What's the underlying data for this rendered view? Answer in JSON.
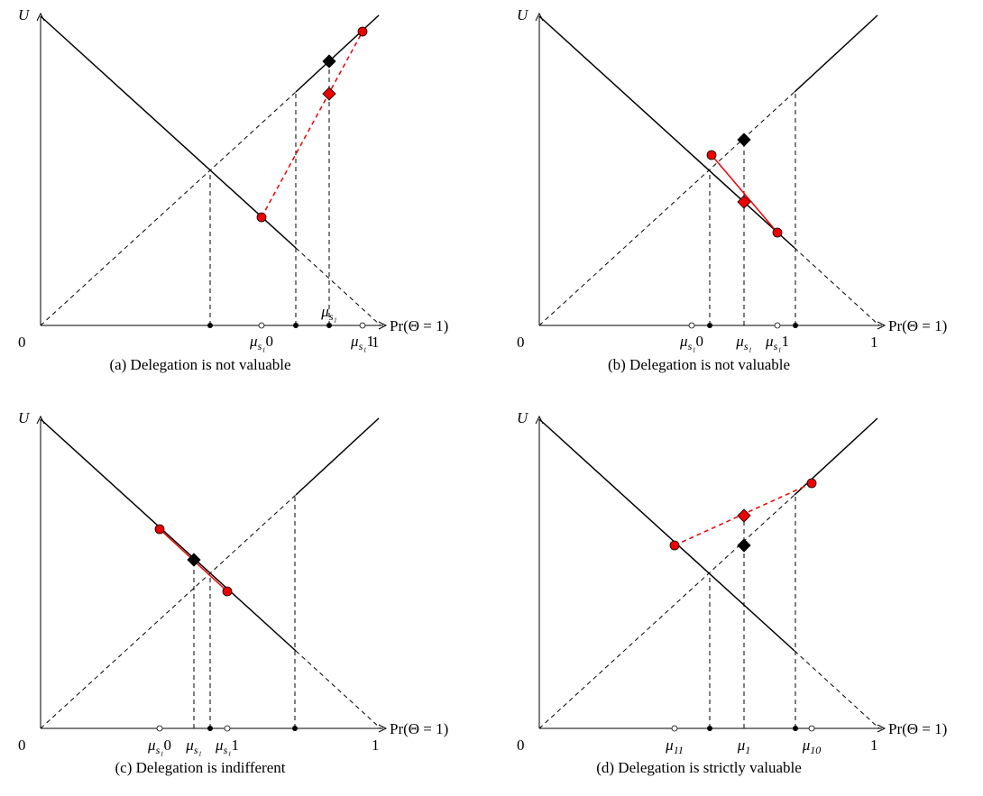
{
  "panels": [
    {
      "caption": "(a) Delegation is not valuable",
      "y_label": "U",
      "x_label": "Pr(Θ = 1)",
      "origin": "0",
      "one": "1",
      "mu_labels": [
        {
          "sym": "μ",
          "sub": "s₁",
          "tail": "0"
        },
        {
          "sym": "μ",
          "sub": "s₁"
        },
        {
          "sym": "μ",
          "sub": "s₁",
          "tail": "1"
        }
      ]
    },
    {
      "caption": "(b) Delegation is not valuable",
      "y_label": "U",
      "x_label": "Pr(Θ = 1)",
      "origin": "0",
      "one": "1",
      "mu_labels": [
        {
          "sym": "μ",
          "sub": "s₁",
          "tail": "0"
        },
        {
          "sym": "μ",
          "sub": "s₁"
        },
        {
          "sym": "μ",
          "sub": "s₁",
          "tail": "1"
        }
      ]
    },
    {
      "caption": "(c) Delegation is indifferent",
      "y_label": "U",
      "x_label": "Pr(Θ = 1)",
      "origin": "0",
      "one": "1",
      "mu_labels": [
        {
          "sym": "μ",
          "sub": "s₁",
          "tail": "0"
        },
        {
          "sym": "μ",
          "sub": "s₁"
        },
        {
          "sym": "μ",
          "sub": "s₁",
          "tail": "1"
        }
      ]
    },
    {
      "caption": "(d) Delegation is strictly valuable",
      "y_label": "U",
      "x_label": "Pr(Θ = 1)",
      "origin": "0",
      "one": "1",
      "mu_labels": [
        {
          "sym": "μ",
          "sub": "11"
        },
        {
          "sym": "μ",
          "sub": "1"
        },
        {
          "sym": "μ",
          "sub": "10"
        }
      ]
    }
  ]
}
